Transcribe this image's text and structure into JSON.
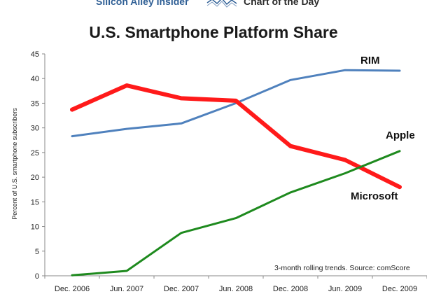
{
  "header": {
    "site_name": "Silicon Alley Insider",
    "section": "Chart of the Day"
  },
  "colors": {
    "rim": "#4f81bd",
    "microsoft": "#ff1a1a",
    "apple": "#1e8a1e",
    "banner_text": "#2f5f95"
  },
  "chart_data": {
    "type": "line",
    "title": "U.S. Smartphone Platform Share",
    "ylabel": "Percent of U.S. smartphone subscribers",
    "xlabel": "",
    "ylim": [
      0,
      45
    ],
    "yticks": [
      0,
      5,
      10,
      15,
      20,
      25,
      30,
      35,
      40,
      45
    ],
    "grid": false,
    "x": [
      "Dec. 2006",
      "Jun. 2007",
      "Dec. 2007",
      "Jun. 2008",
      "Dec. 2008",
      "Jun. 2009",
      "Dec. 2009"
    ],
    "series": [
      {
        "name": "RIM",
        "color": "#4f81bd",
        "values": [
          28.3,
          29.8,
          30.9,
          35.0,
          39.7,
          41.7,
          41.6
        ]
      },
      {
        "name": "Microsoft",
        "color": "#ff1a1a",
        "values": [
          33.7,
          38.6,
          36.0,
          35.5,
          26.3,
          23.5,
          18.0
        ]
      },
      {
        "name": "Apple",
        "color": "#1e8a1e",
        "values": [
          0.1,
          1.0,
          8.7,
          11.7,
          16.9,
          20.8,
          25.3
        ]
      }
    ],
    "note": "3-month rolling trends. Source: comScore"
  }
}
